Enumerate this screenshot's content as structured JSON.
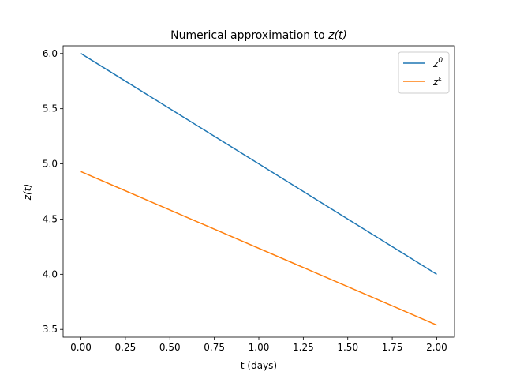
{
  "chart_data": {
    "type": "line",
    "title": "Numerical approximation to z(t)",
    "title_prefix": "Numerical approximation to ",
    "title_math": "z(t)",
    "xlabel": "t (days)",
    "ylabel": "z(t)",
    "xlim": [
      -0.1,
      2.1
    ],
    "ylim": [
      3.43,
      6.07
    ],
    "x_ticks": [
      0.0,
      0.25,
      0.5,
      0.75,
      1.0,
      1.25,
      1.5,
      1.75,
      2.0
    ],
    "x_tick_labels": [
      "0.00",
      "0.25",
      "0.50",
      "0.75",
      "1.00",
      "1.25",
      "1.50",
      "1.75",
      "2.00"
    ],
    "y_ticks": [
      3.5,
      4.0,
      4.5,
      5.0,
      5.5,
      6.0
    ],
    "y_tick_labels": [
      "3.5",
      "4.0",
      "4.5",
      "5.0",
      "5.5",
      "6.0"
    ],
    "legend_position": "upper right",
    "series": [
      {
        "name": "z^0",
        "base": "z",
        "sup": "0",
        "color": "#1f77b4",
        "x": [
          0.0,
          2.0
        ],
        "y": [
          6.0,
          4.0
        ]
      },
      {
        "name": "z^ε",
        "base": "z",
        "sup": "ε",
        "color": "#ff7f0e",
        "x": [
          0.0,
          2.0
        ],
        "y": [
          4.93,
          3.54
        ]
      }
    ]
  }
}
